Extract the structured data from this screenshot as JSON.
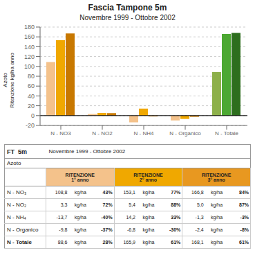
{
  "chart_data": [
    {
      "type": "bar",
      "title": "Fascia Tampone 5m",
      "subtitle": "Novembre 1999 - Ottobre 2002",
      "categories": [
        "N - NO3",
        "N - NO2",
        "N - NH4",
        "N - Organico",
        "N - Totale"
      ],
      "series": [
        {
          "colors": [
            "#F4C28B",
            "#F4C28B",
            "#F4C28B",
            "#F4C28B",
            "#8DB04A"
          ],
          "values": [
            108.8,
            3.3,
            -13.7,
            -9.8,
            88.6
          ]
        },
        {
          "colors": [
            "#F0A800",
            "#F0A800",
            "#F0A800",
            "#F0A800",
            "#4CA832"
          ],
          "values": [
            153.1,
            5.4,
            14.2,
            -6.8,
            165.9
          ]
        },
        {
          "colors": [
            "#C87800",
            "#C87800",
            "#C87800",
            "#C87800",
            "#2D6E1E"
          ],
          "values": [
            166.8,
            5.0,
            -1.3,
            -2.4,
            168.1
          ]
        }
      ],
      "ylabel": "Azoto\nRitenzione kg/ha anno",
      "ylim": [
        -20,
        180
      ],
      "yticks": [
        -20,
        0,
        20,
        40,
        60,
        80,
        100,
        120,
        140,
        160,
        180
      ],
      "grid": true
    },
    {
      "type": "table",
      "title": "FT  5m",
      "subtitle": "Novembre 1999 - Ottobre 2002",
      "annotations": [
        "Azoto"
      ],
      "columns": [
        "RITENZIONE\n1° anno",
        "RITENZIONE\n2° anno",
        "RITENZIONE\n3° anno"
      ],
      "colors": [
        "#F4C28B",
        "#F0A800",
        "#E89820"
      ],
      "categories": [
        "N - NO₃",
        "N - NO₂",
        "N - NH₄",
        "N - Organico",
        "N - Totale"
      ],
      "rows": [
        [
          "108,8",
          "kg/ha",
          "43%",
          "153,1",
          "kg/ha",
          "77%",
          "166,8",
          "kg/ha",
          "84%"
        ],
        [
          "3,3",
          "kg/ha",
          "72%",
          "5,4",
          "kg/ha",
          "88%",
          "5,0",
          "kg/ha",
          "87%"
        ],
        [
          "-13,7",
          "kg/ha",
          "-40%",
          "14,2",
          "kg/ha",
          "33%",
          "-1,3",
          "kg/ha",
          "-3%"
        ],
        [
          "-9,8",
          "kg/ha",
          "-37%",
          "-6,8",
          "kg/ha",
          "-30%",
          "-2,4",
          "kg/ha",
          "-8%"
        ],
        [
          "88,6",
          "kg/ha",
          "28%",
          "165,9",
          "kg/ha",
          "61%",
          "168,1",
          "kg/ha",
          "61%"
        ]
      ]
    }
  ]
}
